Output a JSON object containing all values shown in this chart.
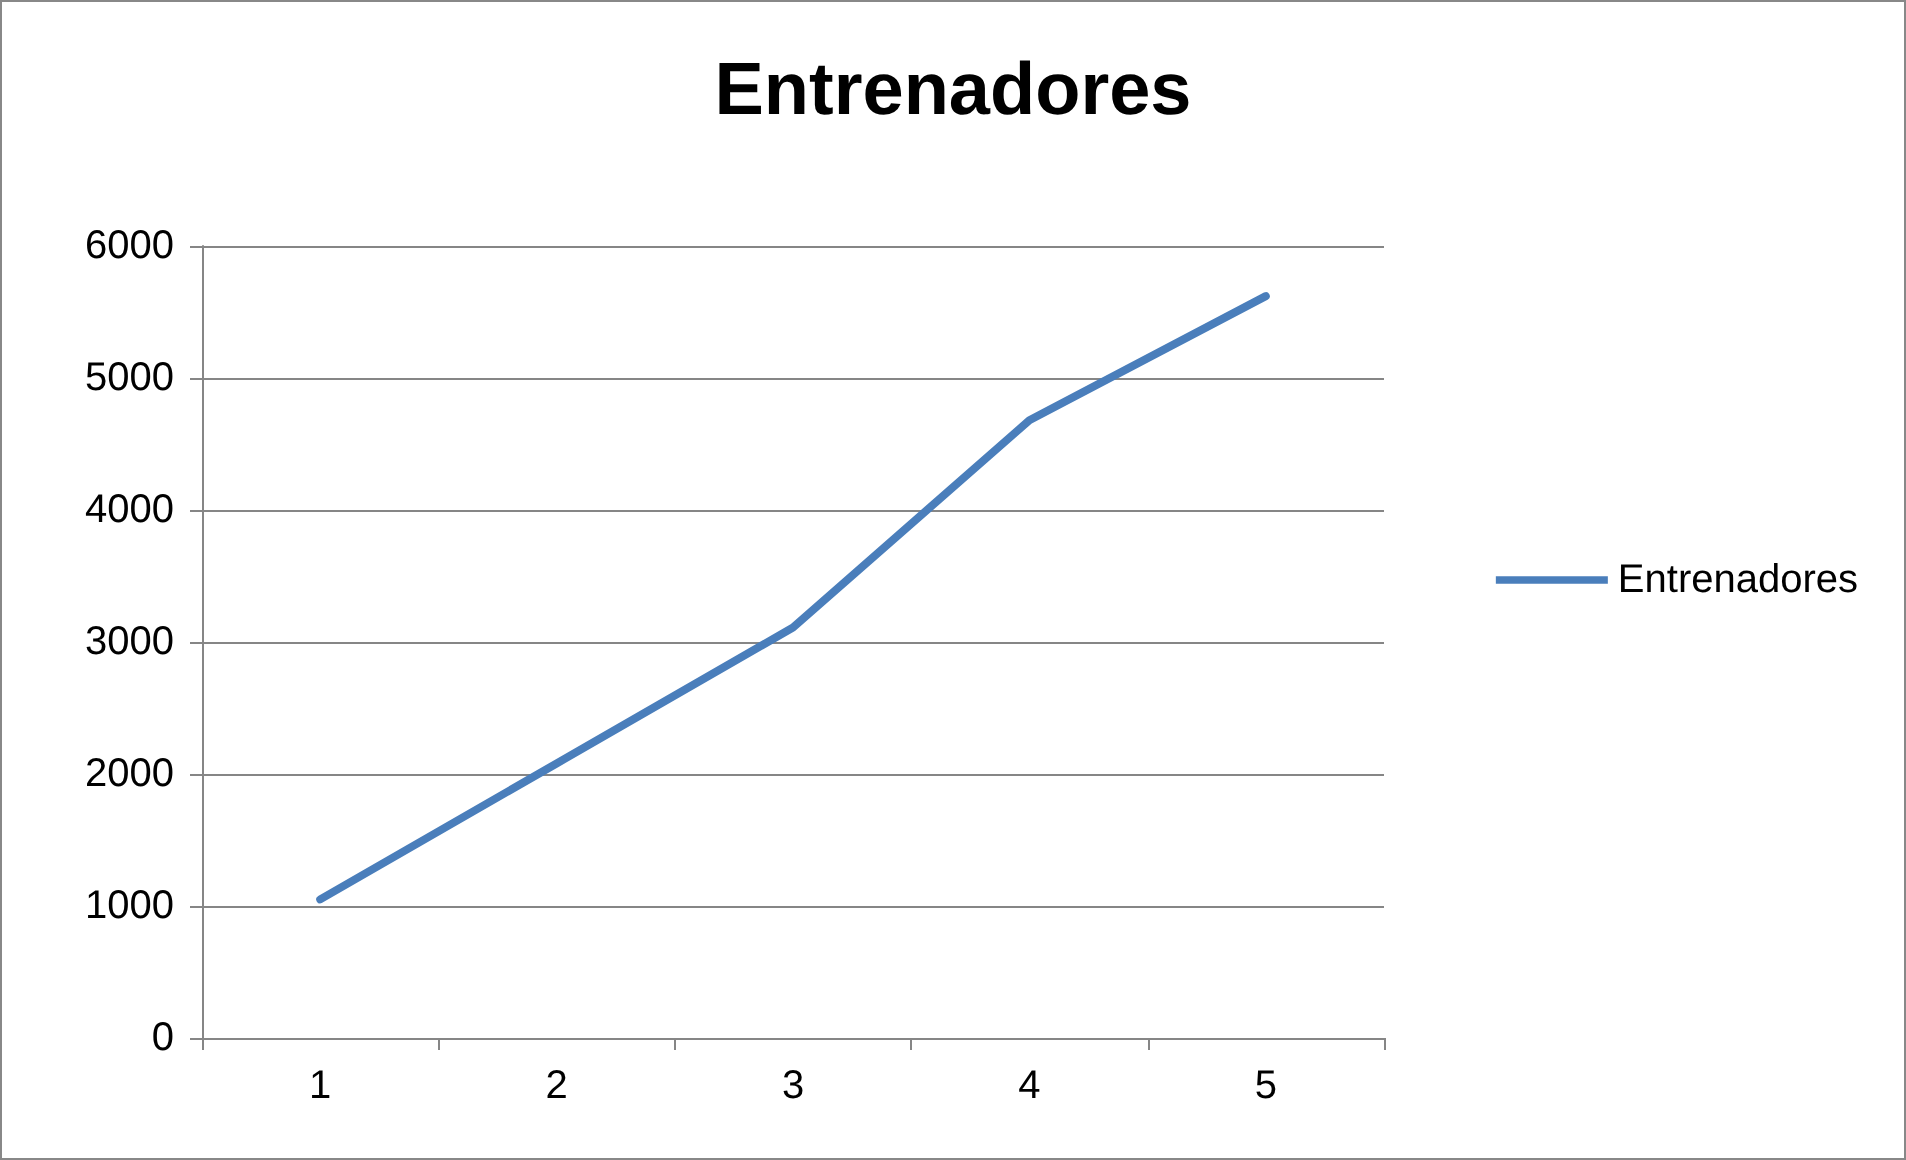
{
  "chart_data": {
    "type": "line",
    "title": "Entrenadores",
    "categories": [
      "1",
      "2",
      "3",
      "4",
      "5"
    ],
    "series": [
      {
        "name": "Entrenadores",
        "color": "#4a7ebb",
        "values": [
          1050,
          2080,
          3110,
          4680,
          5620
        ]
      }
    ],
    "ylim": [
      0,
      6000
    ],
    "yticks": [
      0,
      1000,
      2000,
      3000,
      4000,
      5000,
      6000
    ],
    "grid": "y",
    "legend": "right",
    "marker": "none",
    "line_style": "solid"
  }
}
